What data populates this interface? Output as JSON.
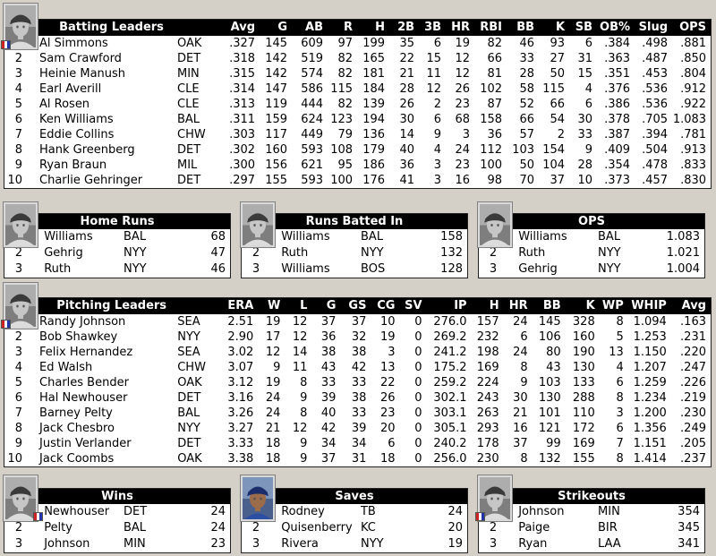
{
  "colors": {
    "page_bg": "#d4d0c8",
    "panel_bg": "#ffffff",
    "header_bg": "#000000",
    "header_text": "#ffffff",
    "text": "#000000",
    "border": "#222222"
  },
  "icons": {
    "photos": [
      "batting-leader-photo",
      "home-runs-leader-photo",
      "rbi-leader-photo",
      "ops-leader-photo",
      "pitching-leader-photo",
      "wins-leader-photo",
      "saves-leader-photo",
      "strikeouts-leader-photo"
    ],
    "badge": "team-logo-badge"
  },
  "batting": {
    "title": "Batting Leaders",
    "columns": [
      "Avg",
      "G",
      "AB",
      "R",
      "H",
      "2B",
      "3B",
      "HR",
      "RBI",
      "BB",
      "K",
      "SB",
      "OB%",
      "Slug",
      "OPS"
    ],
    "rows": [
      {
        "rank": "",
        "name": "Al Simmons",
        "team": "OAK",
        "stats": [
          ".327",
          "145",
          "609",
          "97",
          "199",
          "35",
          "6",
          "19",
          "82",
          "46",
          "93",
          "6",
          ".384",
          ".498",
          ".881"
        ]
      },
      {
        "rank": "2",
        "name": "Sam Crawford",
        "team": "DET",
        "stats": [
          ".318",
          "142",
          "519",
          "82",
          "165",
          "22",
          "15",
          "12",
          "66",
          "33",
          "27",
          "31",
          ".363",
          ".487",
          ".850"
        ]
      },
      {
        "rank": "3",
        "name": "Heinie Manush",
        "team": "MIN",
        "stats": [
          ".315",
          "142",
          "574",
          "82",
          "181",
          "21",
          "11",
          "12",
          "81",
          "28",
          "50",
          "15",
          ".351",
          ".453",
          ".804"
        ]
      },
      {
        "rank": "4",
        "name": "Earl Averill",
        "team": "CLE",
        "stats": [
          ".314",
          "147",
          "586",
          "115",
          "184",
          "28",
          "12",
          "26",
          "102",
          "58",
          "115",
          "4",
          ".376",
          ".536",
          ".912"
        ]
      },
      {
        "rank": "5",
        "name": "Al Rosen",
        "team": "CLE",
        "stats": [
          ".313",
          "119",
          "444",
          "82",
          "139",
          "26",
          "2",
          "23",
          "87",
          "52",
          "66",
          "6",
          ".386",
          ".536",
          ".922"
        ]
      },
      {
        "rank": "6",
        "name": "Ken Williams",
        "team": "BAL",
        "stats": [
          ".311",
          "159",
          "624",
          "123",
          "194",
          "30",
          "6",
          "68",
          "158",
          "66",
          "54",
          "30",
          ".378",
          ".705",
          "1.083"
        ]
      },
      {
        "rank": "7",
        "name": "Eddie Collins",
        "team": "CHW",
        "stats": [
          ".303",
          "117",
          "449",
          "79",
          "136",
          "14",
          "9",
          "3",
          "36",
          "57",
          "2",
          "33",
          ".387",
          ".394",
          ".781"
        ]
      },
      {
        "rank": "8",
        "name": "Hank Greenberg",
        "team": "DET",
        "stats": [
          ".302",
          "160",
          "593",
          "108",
          "179",
          "40",
          "4",
          "24",
          "112",
          "103",
          "154",
          "9",
          ".409",
          ".504",
          ".913"
        ]
      },
      {
        "rank": "9",
        "name": "Ryan Braun",
        "team": "MIL",
        "stats": [
          ".300",
          "156",
          "621",
          "95",
          "186",
          "36",
          "3",
          "23",
          "100",
          "50",
          "104",
          "28",
          ".354",
          ".478",
          ".833"
        ]
      },
      {
        "rank": "10",
        "name": "Charlie Gehringer",
        "team": "DET",
        "stats": [
          ".297",
          "155",
          "593",
          "100",
          "176",
          "41",
          "3",
          "16",
          "98",
          "70",
          "37",
          "10",
          ".373",
          ".457",
          ".830"
        ]
      }
    ]
  },
  "pitching": {
    "title": "Pitching Leaders",
    "columns": [
      "ERA",
      "W",
      "L",
      "G",
      "GS",
      "CG",
      "SV",
      "IP",
      "H",
      "HR",
      "BB",
      "K",
      "WP",
      "WHIP",
      "Avg"
    ],
    "rows": [
      {
        "rank": "",
        "name": "Randy Johnson",
        "team": "SEA",
        "stats": [
          "2.51",
          "19",
          "12",
          "37",
          "37",
          "10",
          "0",
          "276.0",
          "157",
          "24",
          "145",
          "328",
          "8",
          "1.094",
          ".163"
        ]
      },
      {
        "rank": "2",
        "name": "Bob Shawkey",
        "team": "NYY",
        "stats": [
          "2.90",
          "17",
          "12",
          "36",
          "32",
          "19",
          "0",
          "269.2",
          "232",
          "6",
          "106",
          "160",
          "5",
          "1.253",
          ".231"
        ]
      },
      {
        "rank": "3",
        "name": "Felix Hernandez",
        "team": "SEA",
        "stats": [
          "3.02",
          "12",
          "14",
          "38",
          "38",
          "3",
          "0",
          "241.2",
          "198",
          "24",
          "80",
          "190",
          "13",
          "1.150",
          ".220"
        ]
      },
      {
        "rank": "4",
        "name": "Ed Walsh",
        "team": "CHW",
        "stats": [
          "3.07",
          "9",
          "11",
          "43",
          "42",
          "13",
          "0",
          "175.2",
          "169",
          "8",
          "43",
          "130",
          "4",
          "1.207",
          ".247"
        ]
      },
      {
        "rank": "5",
        "name": "Charles Bender",
        "team": "OAK",
        "stats": [
          "3.12",
          "19",
          "8",
          "33",
          "33",
          "22",
          "0",
          "259.2",
          "224",
          "9",
          "103",
          "133",
          "6",
          "1.259",
          ".226"
        ]
      },
      {
        "rank": "6",
        "name": "Hal Newhouser",
        "team": "DET",
        "stats": [
          "3.16",
          "24",
          "9",
          "39",
          "38",
          "26",
          "0",
          "302.1",
          "243",
          "30",
          "130",
          "288",
          "8",
          "1.234",
          ".219"
        ]
      },
      {
        "rank": "7",
        "name": "Barney Pelty",
        "team": "BAL",
        "stats": [
          "3.26",
          "24",
          "8",
          "40",
          "33",
          "23",
          "0",
          "303.1",
          "263",
          "21",
          "101",
          "110",
          "3",
          "1.200",
          ".230"
        ]
      },
      {
        "rank": "8",
        "name": "Jack Chesbro",
        "team": "NYY",
        "stats": [
          "3.27",
          "21",
          "12",
          "42",
          "39",
          "20",
          "0",
          "305.1",
          "293",
          "16",
          "121",
          "172",
          "6",
          "1.356",
          ".249"
        ]
      },
      {
        "rank": "9",
        "name": "Justin Verlander",
        "team": "DET",
        "stats": [
          "3.33",
          "18",
          "9",
          "34",
          "34",
          "6",
          "0",
          "240.2",
          "178",
          "37",
          "99",
          "169",
          "7",
          "1.151",
          ".205"
        ]
      },
      {
        "rank": "10",
        "name": "Jack Coombs",
        "team": "OAK",
        "stats": [
          "3.38",
          "18",
          "9",
          "37",
          "31",
          "18",
          "0",
          "256.0",
          "230",
          "8",
          "132",
          "155",
          "8",
          "1.414",
          ".237"
        ]
      }
    ]
  },
  "boxes": [
    {
      "title": "Home Runs",
      "rows": [
        {
          "rank": "",
          "name": "Williams",
          "team": "BAL",
          "value": "68"
        },
        {
          "rank": "2",
          "name": "Gehrig",
          "team": "NYY",
          "value": "47"
        },
        {
          "rank": "3",
          "name": "Ruth",
          "team": "NYY",
          "value": "46"
        }
      ]
    },
    {
      "title": "Runs Batted In",
      "rows": [
        {
          "rank": "",
          "name": "Williams",
          "team": "BAL",
          "value": "158"
        },
        {
          "rank": "2",
          "name": "Ruth",
          "team": "NYY",
          "value": "132"
        },
        {
          "rank": "3",
          "name": "Williams",
          "team": "BOS",
          "value": "128"
        }
      ]
    },
    {
      "title": "OPS",
      "rows": [
        {
          "rank": "",
          "name": "Williams",
          "team": "BAL",
          "value": "1.083"
        },
        {
          "rank": "2",
          "name": "Ruth",
          "team": "NYY",
          "value": "1.021"
        },
        {
          "rank": "3",
          "name": "Gehrig",
          "team": "NYY",
          "value": "1.004"
        }
      ]
    },
    {
      "title": "Wins",
      "rows": [
        {
          "rank": "",
          "name": "Newhouser",
          "team": "DET",
          "value": "24"
        },
        {
          "rank": "2",
          "name": "Pelty",
          "team": "BAL",
          "value": "24"
        },
        {
          "rank": "3",
          "name": "Johnson",
          "team": "MIN",
          "value": "23"
        }
      ]
    },
    {
      "title": "Saves",
      "rows": [
        {
          "rank": "",
          "name": "Rodney",
          "team": "TB",
          "value": "24"
        },
        {
          "rank": "2",
          "name": "Quisenberry",
          "team": "KC",
          "value": "20"
        },
        {
          "rank": "3",
          "name": "Rivera",
          "team": "NYY",
          "value": "19"
        }
      ]
    },
    {
      "title": "Strikeouts",
      "rows": [
        {
          "rank": "",
          "name": "Johnson",
          "team": "MIN",
          "value": "354"
        },
        {
          "rank": "2",
          "name": "Paige",
          "team": "BIR",
          "value": "345"
        },
        {
          "rank": "3",
          "name": "Ryan",
          "team": "LAA",
          "value": "341"
        }
      ]
    }
  ]
}
